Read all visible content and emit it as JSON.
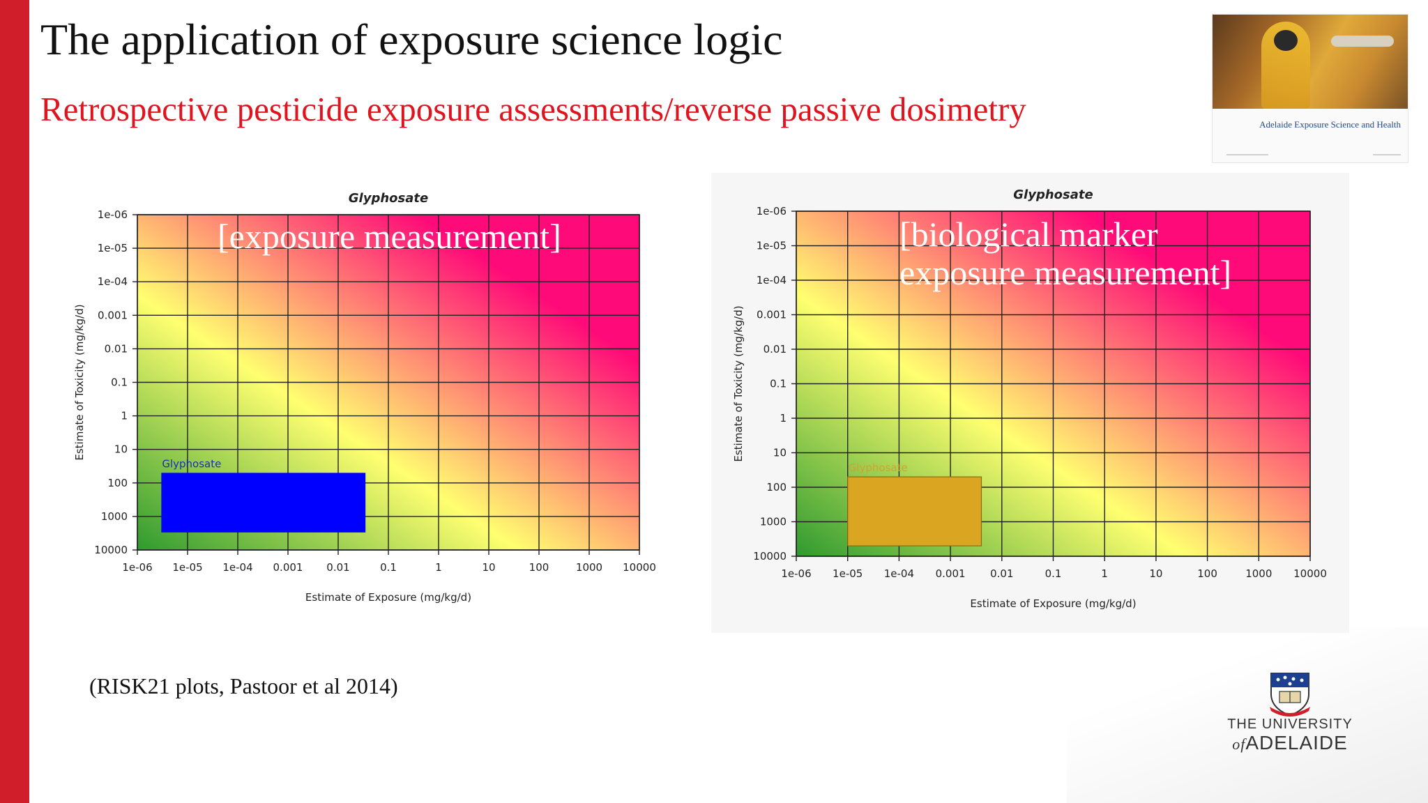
{
  "slide": {
    "title": "The application of exposure science logic",
    "subtitle": "Retrospective pesticide exposure assessments/reverse passive dosimetry",
    "citation": "(RISK21 plots, Pastoor et al 2014)"
  },
  "thumbnail": {
    "caption": "Adelaide Exposure Science and Health"
  },
  "logo": {
    "line1": "THE UNIVERSITY",
    "line2_of": "of",
    "line2_name": "ADELAIDE"
  },
  "colors": {
    "accent_red": "#d01e2a",
    "subtitle_red": "#e0141e",
    "risk_green": "#2f9a2f",
    "risk_yellow": "#ffff70",
    "risk_magenta": "#ff0a78"
  },
  "chart_data": [
    {
      "type": "heatmap",
      "title": "Glyphosate",
      "xlabel": "Estimate of Exposure (mg/kg/d)",
      "ylabel": "Estimate of Toxicity (mg/kg/d)",
      "xscale": "log",
      "yscale": "log",
      "xlim": [
        1e-06,
        10000
      ],
      "ylim": [
        10000,
        1e-06
      ],
      "x_ticks": [
        "1e-06",
        "1e-05",
        "1e-04",
        "0.001",
        "0.01",
        "0.1",
        "1",
        "10",
        "100",
        "1000",
        "10000"
      ],
      "y_ticks": [
        "1e-06",
        "1e-05",
        "1e-04",
        "0.001",
        "0.01",
        "0.1",
        "1",
        "10",
        "100",
        "1000",
        "10000"
      ],
      "grid": true,
      "overlay_text": [
        "[exposure measurement]"
      ],
      "series": [
        {
          "name": "Glyphosate",
          "color": "#0000ff",
          "x_range": [
            3e-06,
            0.035
          ],
          "y_range": [
            50,
            3000
          ]
        }
      ]
    },
    {
      "type": "heatmap",
      "title": "Glyphosate",
      "xlabel": "Estimate of Exposure (mg/kg/d)",
      "ylabel": "Estimate of Toxicity (mg/kg/d)",
      "xscale": "log",
      "yscale": "log",
      "xlim": [
        1e-06,
        10000
      ],
      "ylim": [
        10000,
        1e-06
      ],
      "x_ticks": [
        "1e-06",
        "1e-05",
        "1e-04",
        "0.001",
        "0.01",
        "0.1",
        "1",
        "10",
        "100",
        "1000",
        "10000"
      ],
      "y_ticks": [
        "1e-06",
        "1e-05",
        "1e-04",
        "0.001",
        "0.01",
        "0.1",
        "1",
        "10",
        "100",
        "1000",
        "10000"
      ],
      "grid": true,
      "overlay_text": [
        "[biological marker",
        "exposure measurement]"
      ],
      "series": [
        {
          "name": "Glyphosate",
          "color": "#daa520",
          "x_range": [
            1e-05,
            0.004
          ],
          "y_range": [
            50,
            5000
          ]
        }
      ]
    }
  ]
}
